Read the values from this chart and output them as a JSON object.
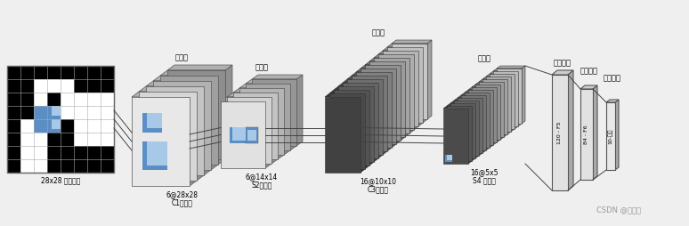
{
  "bg_color": "#efefef",
  "title": "CSDN @齐硕君",
  "input_label": "28x28 输入图片",
  "c1_label1": "6@28x28",
  "c1_label2": "C1特征图",
  "s2_label1": "6@14x14",
  "s2_label2": "S2特征图",
  "c3_label1": "16@10x10",
  "c3_label2": "C3特征图",
  "s4_label1": "16@5x5",
  "s4_label2": "S4 特征图",
  "f5_label": "120 - F5",
  "f6_label": "84 - F6",
  "out_label": "10-输出",
  "lbl_juanji1": "卷积层",
  "lbl_huiju1": "汇聚层",
  "lbl_juanji2": "卷积层",
  "lbl_huiju2": "汇聚层",
  "lbl_fc1": "全连接层",
  "lbl_fc2": "全连接层",
  "lbl_fc3": "全连接层"
}
